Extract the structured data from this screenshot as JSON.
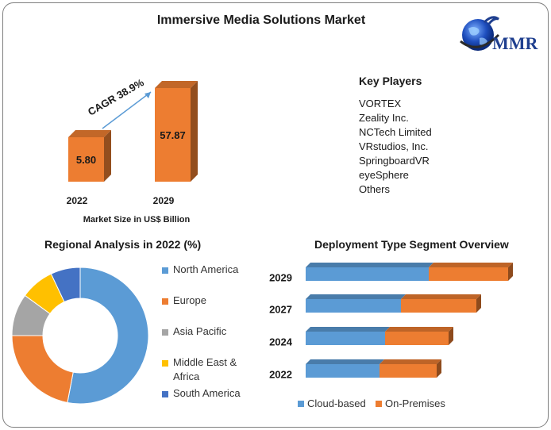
{
  "title": "Immersive Media Solutions Market",
  "logo": {
    "text": "MMR",
    "icon": "globe-icon"
  },
  "key_players": {
    "title": "Key Players",
    "items": [
      "VORTEX",
      "Zeality Inc.",
      "NCTech Limited",
      "VRstudios, Inc.",
      "SpringboardVR",
      "eyeSphere",
      "Others"
    ]
  },
  "colors": {
    "blue": "#5b9bd5",
    "orange": "#ed7d31",
    "gray": "#a5a5a5",
    "yellow": "#ffc000",
    "darkblue": "#4472c4"
  },
  "chart_data": [
    {
      "type": "bar",
      "title": "",
      "xlabel": "Market Size in US$ Billion",
      "categories": [
        "2022",
        "2029"
      ],
      "values": [
        5.8,
        57.87
      ],
      "value_labels": [
        "5.80",
        "57.87"
      ],
      "annotation": "CAGR 38.9%"
    },
    {
      "type": "pie",
      "title": "Regional Analysis in 2022 (%)",
      "labels": [
        "North America",
        "Europe",
        "Asia Pacific",
        "Middle East & Africa",
        "South America"
      ],
      "values": [
        53,
        22,
        10,
        8,
        7
      ],
      "legend_placement": "right"
    },
    {
      "type": "bar",
      "orientation": "horizontal",
      "stacked": true,
      "title": "Deployment Type Segment Overview",
      "categories": [
        "2029",
        "2027",
        "2024",
        "2022"
      ],
      "series": [
        {
          "name": "Cloud-based",
          "values": [
            155,
            120,
            100,
            93
          ]
        },
        {
          "name": "On-Premises",
          "values": [
            100,
            95,
            80,
            72
          ]
        }
      ],
      "legend_placement": "bottom"
    }
  ]
}
